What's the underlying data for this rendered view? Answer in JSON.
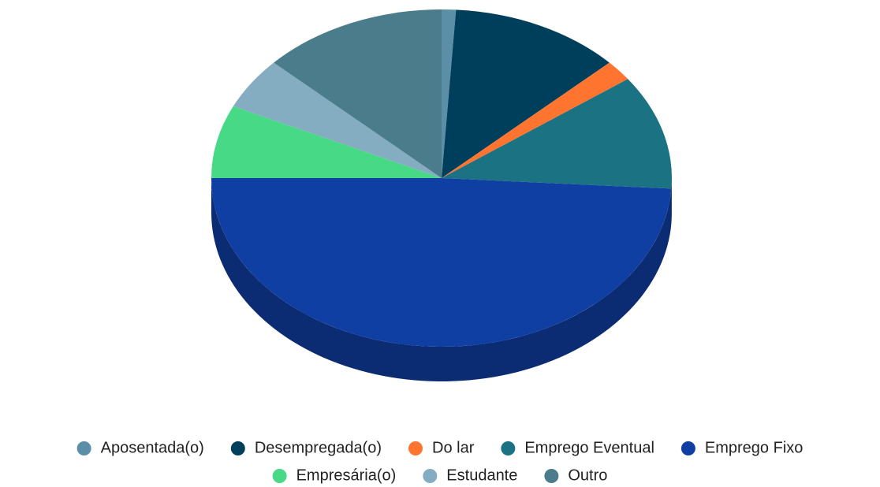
{
  "chart_data": {
    "type": "pie3d",
    "categories": [
      "Aposentada(o)",
      "Desempregada(o)",
      "Do lar",
      "Emprego Eventual",
      "Emprego Fixo",
      "Empresária(o)",
      "Estudante",
      "Outro"
    ],
    "values": [
      1,
      12,
      2,
      11,
      49,
      7,
      5,
      13
    ],
    "colors": [
      "#5b8fa8",
      "#003f5c",
      "#ff7530",
      "#1b7282",
      "#0f3fa3",
      "#47d985",
      "#85adc2",
      "#4b7c8c"
    ],
    "legend": "bottom"
  }
}
